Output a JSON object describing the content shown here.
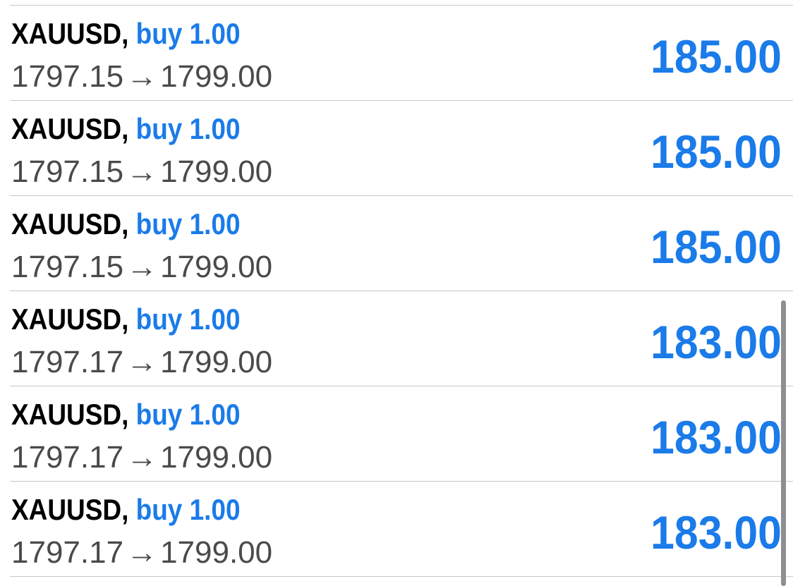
{
  "trades": [
    {
      "symbol": "XAUUSD,",
      "action": "buy 1.00",
      "open_price": "1797.15",
      "arrow": "→",
      "current_price": "1799.00",
      "profit": "185.00"
    },
    {
      "symbol": "XAUUSD,",
      "action": "buy 1.00",
      "open_price": "1797.15",
      "arrow": "→",
      "current_price": "1799.00",
      "profit": "185.00"
    },
    {
      "symbol": "XAUUSD,",
      "action": "buy 1.00",
      "open_price": "1797.15",
      "arrow": "→",
      "current_price": "1799.00",
      "profit": "185.00"
    },
    {
      "symbol": "XAUUSD,",
      "action": "buy 1.00",
      "open_price": "1797.17",
      "arrow": "→",
      "current_price": "1799.00",
      "profit": "183.00"
    },
    {
      "symbol": "XAUUSD,",
      "action": "buy 1.00",
      "open_price": "1797.17",
      "arrow": "→",
      "current_price": "1799.00",
      "profit": "183.00"
    },
    {
      "symbol": "XAUUSD,",
      "action": "buy 1.00",
      "open_price": "1797.17",
      "arrow": "→",
      "current_price": "1799.00",
      "profit": "183.00"
    }
  ],
  "colors": {
    "accent": "#1a7be9",
    "symbol": "#000000",
    "price": "#4a4a4a",
    "divider": "#c8c7cc",
    "scrollbar": "#8e8e93"
  }
}
